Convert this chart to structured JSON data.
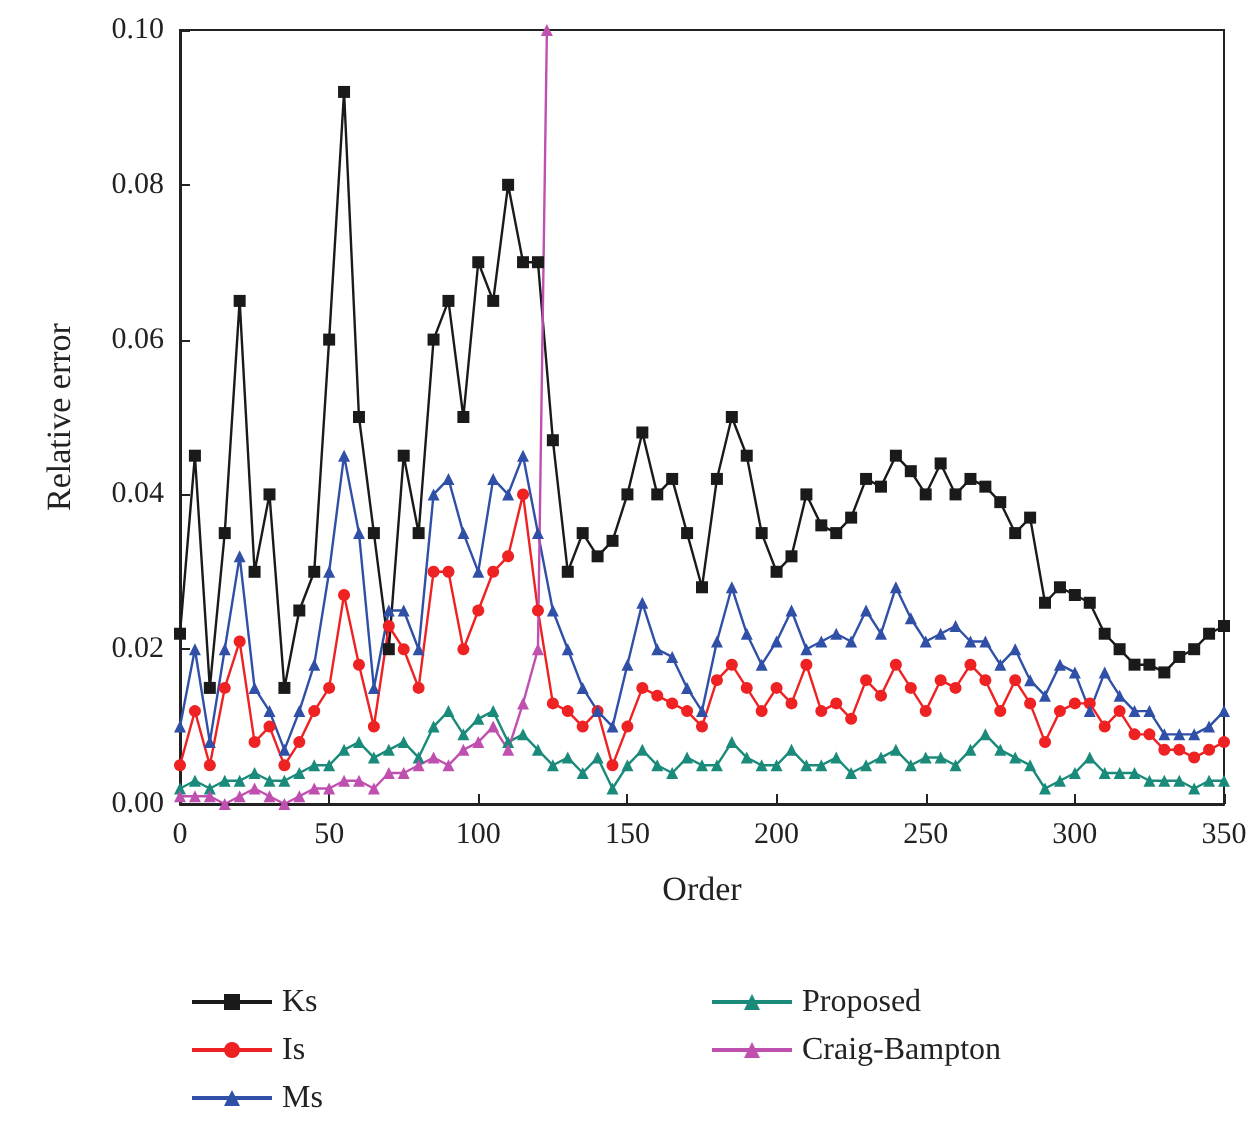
{
  "chart_data": {
    "type": "line",
    "xlabel": "Order",
    "ylabel": "Relative error",
    "x": [
      0,
      5,
      10,
      15,
      20,
      25,
      30,
      35,
      40,
      45,
      50,
      55,
      60,
      65,
      70,
      75,
      80,
      85,
      90,
      95,
      100,
      105,
      110,
      115,
      120,
      125,
      130,
      135,
      140,
      145,
      150,
      155,
      160,
      165,
      170,
      175,
      180,
      185,
      190,
      195,
      200,
      205,
      210,
      215,
      220,
      225,
      230,
      235,
      240,
      245,
      250,
      255,
      260,
      265,
      270,
      275,
      280,
      285,
      290,
      295,
      300,
      305,
      310,
      315,
      320,
      325,
      330,
      335,
      340,
      345,
      350
    ],
    "xlim": [
      0,
      350
    ],
    "xticks": [
      0,
      50,
      100,
      150,
      200,
      250,
      300,
      350
    ],
    "ylim": [
      0,
      0.1
    ],
    "yticks": [
      {
        "value": 0,
        "label": "0.00"
      },
      {
        "value": 0.02,
        "label": "0.02"
      },
      {
        "value": 0.04,
        "label": "0.04"
      },
      {
        "value": 0.06,
        "label": "0.06"
      },
      {
        "value": 0.08,
        "label": "0.08"
      },
      {
        "value": 0.1,
        "label": "0.10"
      }
    ],
    "grid": false,
    "legend": "bottom",
    "series": [
      {
        "name": "Ks",
        "color": "#1a1a1a",
        "marker": "square",
        "values": [
          0.022,
          0.045,
          0.015,
          0.035,
          0.065,
          0.03,
          0.04,
          0.015,
          0.025,
          0.03,
          0.06,
          0.092,
          0.05,
          0.035,
          0.02,
          0.045,
          0.035,
          0.06,
          0.065,
          0.05,
          0.07,
          0.065,
          0.08,
          0.07,
          0.07,
          0.047,
          0.03,
          0.035,
          0.032,
          0.034,
          0.04,
          0.048,
          0.04,
          0.042,
          0.035,
          0.028,
          0.042,
          0.05,
          0.045,
          0.035,
          0.03,
          0.032,
          0.04,
          0.036,
          0.035,
          0.037,
          0.042,
          0.041,
          0.045,
          0.043,
          0.04,
          0.044,
          0.04,
          0.042,
          0.041,
          0.039,
          0.035,
          0.037,
          0.026,
          0.028,
          0.027,
          0.026,
          0.022,
          0.02,
          0.018,
          0.018,
          0.017,
          0.019,
          0.02,
          0.022,
          0.023
        ]
      },
      {
        "name": "Is",
        "color": "#ee2222",
        "marker": "circle",
        "values": [
          0.005,
          0.012,
          0.005,
          0.015,
          0.021,
          0.008,
          0.01,
          0.005,
          0.008,
          0.012,
          0.015,
          0.027,
          0.018,
          0.01,
          0.023,
          0.02,
          0.015,
          0.03,
          0.03,
          0.02,
          0.025,
          0.03,
          0.032,
          0.04,
          0.025,
          0.013,
          0.012,
          0.01,
          0.012,
          0.005,
          0.01,
          0.015,
          0.014,
          0.013,
          0.012,
          0.01,
          0.016,
          0.018,
          0.015,
          0.012,
          0.015,
          0.013,
          0.018,
          0.012,
          0.013,
          0.011,
          0.016,
          0.014,
          0.018,
          0.015,
          0.012,
          0.016,
          0.015,
          0.018,
          0.016,
          0.012,
          0.016,
          0.013,
          0.008,
          0.012,
          0.013,
          0.013,
          0.01,
          0.012,
          0.009,
          0.009,
          0.007,
          0.007,
          0.006,
          0.007,
          0.008
        ]
      },
      {
        "name": "Ms",
        "color": "#3050a8",
        "marker": "triangle",
        "values": [
          0.01,
          0.02,
          0.008,
          0.02,
          0.032,
          0.015,
          0.012,
          0.007,
          0.012,
          0.018,
          0.03,
          0.045,
          0.035,
          0.015,
          0.025,
          0.025,
          0.02,
          0.04,
          0.042,
          0.035,
          0.03,
          0.042,
          0.04,
          0.045,
          0.035,
          0.025,
          0.02,
          0.015,
          0.012,
          0.01,
          0.018,
          0.026,
          0.02,
          0.019,
          0.015,
          0.012,
          0.021,
          0.028,
          0.022,
          0.018,
          0.021,
          0.025,
          0.02,
          0.021,
          0.022,
          0.021,
          0.025,
          0.022,
          0.028,
          0.024,
          0.021,
          0.022,
          0.023,
          0.021,
          0.021,
          0.018,
          0.02,
          0.016,
          0.014,
          0.018,
          0.017,
          0.012,
          0.017,
          0.014,
          0.012,
          0.012,
          0.009,
          0.009,
          0.009,
          0.01,
          0.012
        ]
      },
      {
        "name": "Proposed",
        "color": "#1a8a7a",
        "marker": "triangle",
        "values": [
          0.002,
          0.003,
          0.002,
          0.003,
          0.003,
          0.004,
          0.003,
          0.003,
          0.004,
          0.005,
          0.005,
          0.007,
          0.008,
          0.006,
          0.007,
          0.008,
          0.006,
          0.01,
          0.012,
          0.009,
          0.011,
          0.012,
          0.008,
          0.009,
          0.007,
          0.005,
          0.006,
          0.004,
          0.006,
          0.002,
          0.005,
          0.007,
          0.005,
          0.004,
          0.006,
          0.005,
          0.005,
          0.008,
          0.006,
          0.005,
          0.005,
          0.007,
          0.005,
          0.005,
          0.006,
          0.004,
          0.005,
          0.006,
          0.007,
          0.005,
          0.006,
          0.006,
          0.005,
          0.007,
          0.009,
          0.007,
          0.006,
          0.005,
          0.002,
          0.003,
          0.004,
          0.006,
          0.004,
          0.004,
          0.004,
          0.003,
          0.003,
          0.003,
          0.002,
          0.003,
          0.003
        ]
      },
      {
        "name": "Craig-Bampton",
        "color": "#c050b0",
        "marker": "triangle",
        "x": [
          0,
          5,
          10,
          15,
          20,
          25,
          30,
          35,
          40,
          45,
          50,
          55,
          60,
          65,
          70,
          75,
          80,
          85,
          90,
          95,
          100,
          105,
          110,
          115,
          120,
          123
        ],
        "values": [
          0.001,
          0.001,
          0.001,
          0,
          0.001,
          0.002,
          0.001,
          0,
          0.001,
          0.002,
          0.002,
          0.003,
          0.003,
          0.002,
          0.004,
          0.004,
          0.005,
          0.006,
          0.005,
          0.007,
          0.008,
          0.01,
          0.007,
          0.013,
          0.02,
          0.1
        ]
      }
    ]
  }
}
